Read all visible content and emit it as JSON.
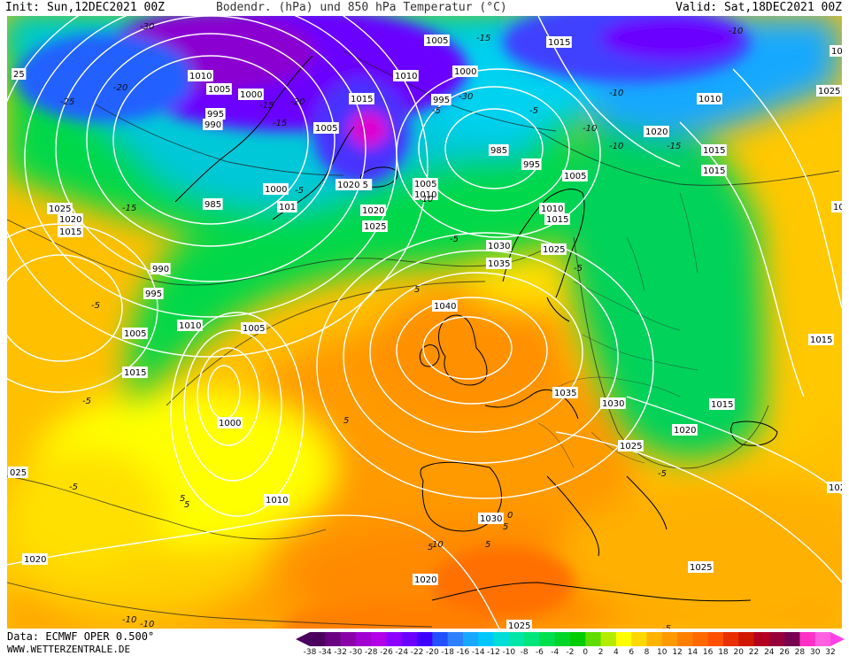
{
  "header": {
    "init": "Init: Sun,12DEC2021 00Z",
    "title": "Bodendr. (hPa) und 850 hPa Temperatur (°C)",
    "valid": "Valid: Sat,18DEC2021 00Z"
  },
  "footer": {
    "source": "Data: ECMWF OPER 0.500°",
    "site": "WWW.WETTERZENTRALE.DE"
  },
  "legend": {
    "ticks": [
      "-38",
      "-34",
      "-32",
      "-30",
      "-28",
      "-26",
      "-24",
      "-22",
      "-20",
      "-18",
      "-16",
      "-14",
      "-12",
      "-10",
      "-8",
      "-6",
      "-4",
      "-2",
      "0",
      "2",
      "4",
      "6",
      "8",
      "10",
      "12",
      "14",
      "16",
      "18",
      "20",
      "22",
      "24",
      "26",
      "28",
      "30",
      "32"
    ],
    "colors": [
      "#4b0060",
      "#6a0080",
      "#8a00a8",
      "#a000d0",
      "#b400e8",
      "#8c00ff",
      "#6a00ff",
      "#4000ff",
      "#2050ff",
      "#2e80ff",
      "#19a8ff",
      "#00c8ff",
      "#00dcd8",
      "#00e6a8",
      "#00e67a",
      "#00e04e",
      "#00d62a",
      "#00cc00",
      "#5fdc00",
      "#b4ec00",
      "#ffff00",
      "#ffd800",
      "#ffb400",
      "#ff9a00",
      "#ff8000",
      "#ff6a00",
      "#ff5000",
      "#e83000",
      "#d01800",
      "#b40020",
      "#960038",
      "#780050",
      "#ff30c8",
      "#ff60e0"
    ],
    "arrow_left_color": "#4b0060",
    "arrow_right_color": "#ff40e8"
  },
  "isobar_labels": [
    {
      "text": "1005"
    },
    {
      "text": "1015"
    },
    {
      "text": "1030"
    },
    {
      "text": "25"
    },
    {
      "text": "1010"
    },
    {
      "text": "1010"
    },
    {
      "text": "1005"
    },
    {
      "text": "1000"
    },
    {
      "text": "1000"
    },
    {
      "text": "995"
    },
    {
      "text": "1010"
    },
    {
      "text": "1025"
    },
    {
      "text": "995"
    },
    {
      "text": "1015"
    },
    {
      "text": "990"
    },
    {
      "text": "1005"
    },
    {
      "text": "985"
    },
    {
      "text": "1020"
    },
    {
      "text": "995"
    },
    {
      "text": "1015"
    },
    {
      "text": "1005"
    },
    {
      "text": "1015"
    },
    {
      "text": "985"
    },
    {
      "text": "1000"
    },
    {
      "text": "1020 5"
    },
    {
      "text": "1005"
    },
    {
      "text": "1010"
    },
    {
      "text": "101"
    },
    {
      "text": "1025"
    },
    {
      "text": "1020"
    },
    {
      "text": "1020"
    },
    {
      "text": "1010"
    },
    {
      "text": "1015"
    },
    {
      "text": "1015"
    },
    {
      "text": "1025"
    },
    {
      "text": "101"
    },
    {
      "text": "1030"
    },
    {
      "text": "1025"
    },
    {
      "text": "990"
    },
    {
      "text": "1035"
    },
    {
      "text": "995"
    },
    {
      "text": "1040"
    },
    {
      "text": "1010"
    },
    {
      "text": "1005"
    },
    {
      "text": "1005"
    },
    {
      "text": "1015"
    },
    {
      "text": "1015"
    },
    {
      "text": "1035"
    },
    {
      "text": "1030"
    },
    {
      "text": "1000"
    },
    {
      "text": "1015"
    },
    {
      "text": "1020"
    },
    {
      "text": "1025"
    },
    {
      "text": "025"
    },
    {
      "text": "1020"
    },
    {
      "text": "1010"
    },
    {
      "text": "1030"
    },
    {
      "text": "1020"
    },
    {
      "text": "1025"
    },
    {
      "text": "1020"
    },
    {
      "text": "1025"
    },
    {
      "text": "1015"
    }
  ],
  "temp_labels": [
    {
      "text": "-30"
    },
    {
      "text": "-15"
    },
    {
      "text": "-10"
    },
    {
      "text": "-20"
    },
    {
      "text": "-15"
    },
    {
      "text": "-30"
    },
    {
      "text": "-25"
    },
    {
      "text": "-20"
    },
    {
      "text": "-15"
    },
    {
      "text": "-10"
    },
    {
      "text": "-15"
    },
    {
      "text": "-10"
    },
    {
      "text": "-5"
    },
    {
      "text": "-5"
    },
    {
      "text": "-10"
    },
    {
      "text": "-15"
    },
    {
      "text": "-5"
    },
    {
      "text": "-10"
    },
    {
      "text": "-5"
    },
    {
      "text": "5"
    },
    {
      "text": "-5"
    },
    {
      "text": "-5"
    },
    {
      "text": "-5"
    },
    {
      "text": "5"
    },
    {
      "text": "-5"
    },
    {
      "text": "5"
    },
    {
      "text": "5"
    },
    {
      "text": "-10"
    },
    {
      "text": "-5"
    },
    {
      "text": "5"
    },
    {
      "text": "10"
    },
    {
      "text": "-10"
    },
    {
      "text": "5"
    },
    {
      "text": "5"
    },
    {
      "text": "0"
    },
    {
      "text": "-5"
    }
  ]
}
